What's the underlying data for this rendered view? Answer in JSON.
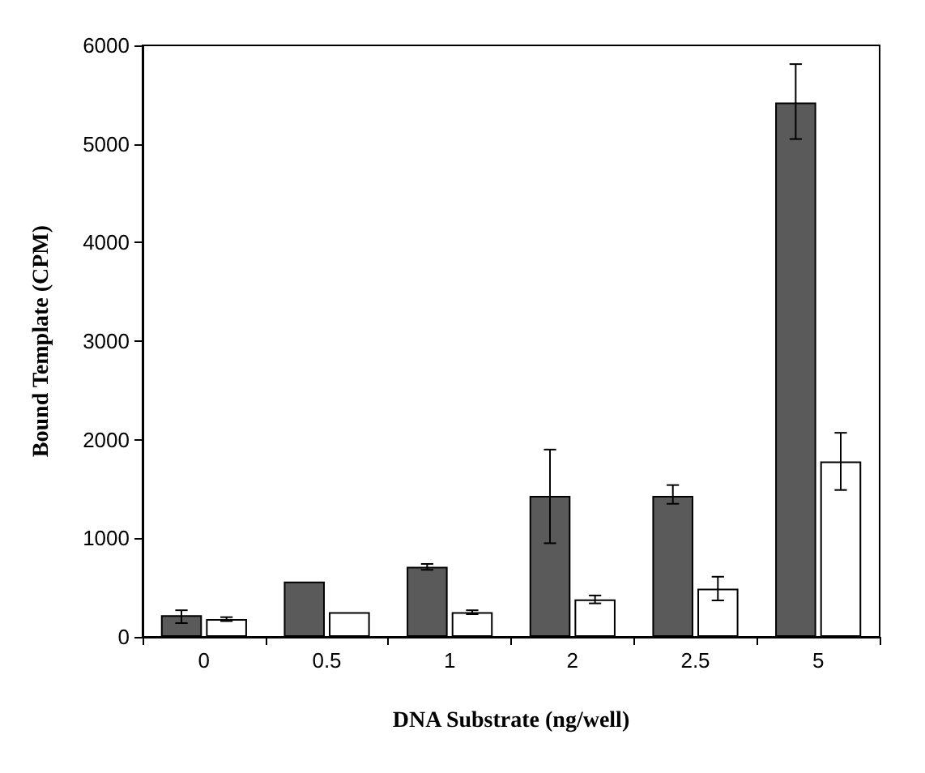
{
  "chart_data": {
    "type": "bar",
    "xlabel": "DNA Substrate (ng/well)",
    "ylabel": "Bound Template (CPM)",
    "categories": [
      "0",
      "0.5",
      "1",
      "2",
      "2.5",
      "5"
    ],
    "series": [
      {
        "color": "#5a5a5a",
        "values": [
          220,
          560,
          710,
          1430,
          1430,
          5420
        ],
        "errors": [
          [
            140,
            270
          ],
          null,
          [
            680,
            740
          ],
          [
            950,
            1900
          ],
          [
            1350,
            1540
          ],
          [
            5050,
            5810
          ]
        ]
      },
      {
        "color": "#ffffff",
        "values": [
          180,
          250,
          250,
          380,
          490,
          1780
        ],
        "errors": [
          [
            160,
            200
          ],
          null,
          [
            230,
            270
          ],
          [
            340,
            420
          ],
          [
            370,
            610
          ],
          [
            1490,
            2070
          ]
        ]
      }
    ],
    "ylim": [
      0,
      6000
    ],
    "yticks": [
      0,
      1000,
      2000,
      3000,
      4000,
      5000,
      6000
    ],
    "grid": false
  }
}
